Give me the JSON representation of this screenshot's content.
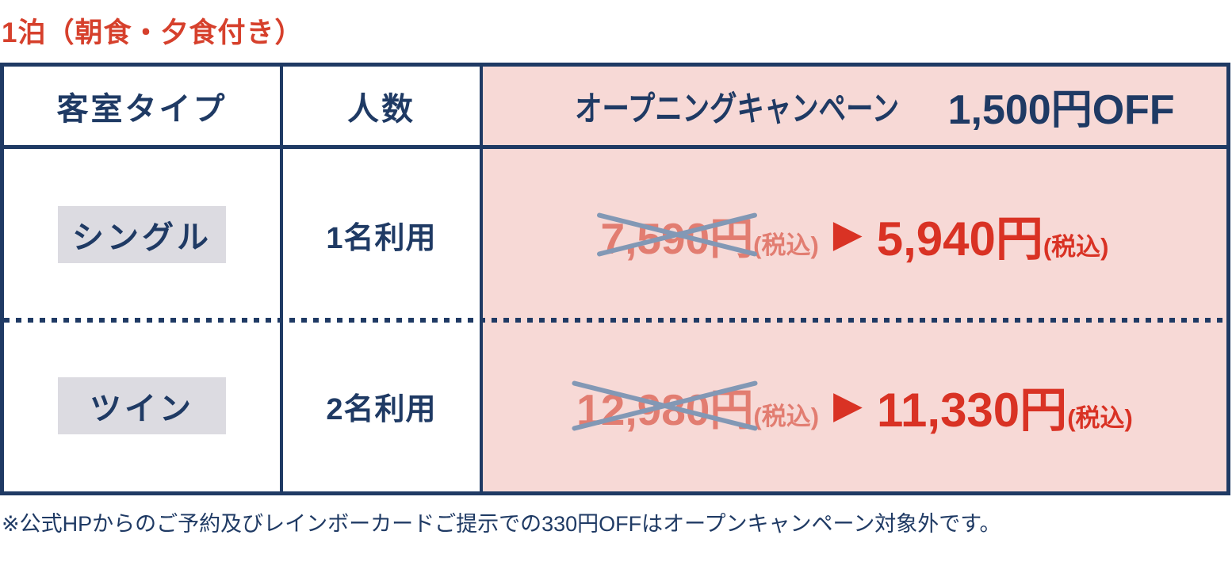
{
  "title": "1泊（朝食・夕食付き）",
  "table": {
    "headers": {
      "room_type": "客室タイプ",
      "occupancy": "人数",
      "campaign_prefix": "オープニングキャンペーン",
      "campaign_amount": "1,500円OFF"
    },
    "rows": [
      {
        "room_type": "シングル",
        "occupancy": "1名利用",
        "old_price": "7,590円",
        "old_tax": "(税込)",
        "new_price": "5,940円",
        "new_tax": "(税込)"
      },
      {
        "room_type": "ツイン",
        "occupancy": "2名利用",
        "old_price": "12,980円",
        "old_tax": "(税込)",
        "new_price": "11,330円",
        "new_tax": "(税込)"
      }
    ]
  },
  "icons": {
    "arrow_right": "▶"
  },
  "footnote": "※公式HPからのご予約及びレインボーカードご提示での330円OFFはオープンキャンペーン対象外です。",
  "colors": {
    "navy": "#1f3a64",
    "title_red": "#d6402c",
    "price_red": "#d93224",
    "salmon": "#e27d71",
    "pink": "#f7d9d6",
    "badge_gray": "#dcdbe1",
    "cross_blue": "#8298b5"
  }
}
